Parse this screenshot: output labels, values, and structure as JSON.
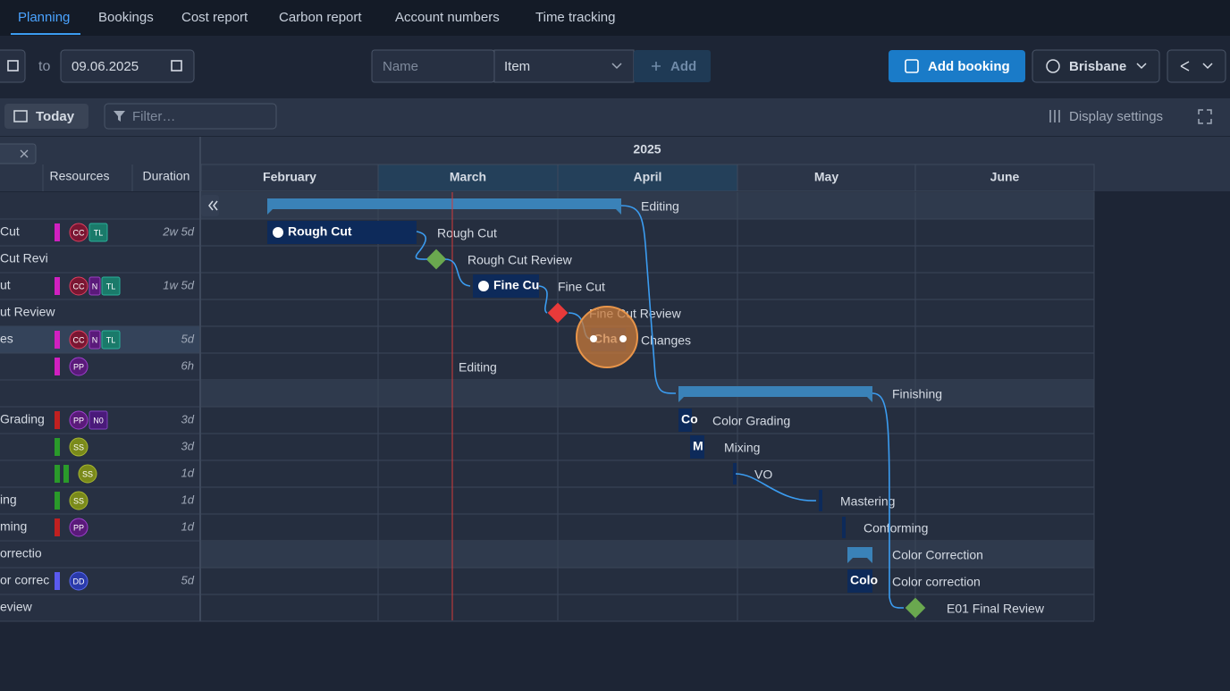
{
  "tabs": [
    "Planning",
    "Bookings",
    "Cost report",
    "Carbon report",
    "Account numbers",
    "Time tracking"
  ],
  "toolbar": {
    "to_label": "to",
    "end_date": "09.06.2025",
    "name_placeholder": "Name",
    "item_select": "Item",
    "add_button": "Add",
    "add_booking": "Add booking",
    "location": "Brisbane"
  },
  "subtoolbar": {
    "today": "Today",
    "filter_placeholder": "Filter…",
    "display_settings": "Display settings"
  },
  "grid_header": {
    "resources": "Resources",
    "duration": "Duration"
  },
  "timeline": {
    "year": "2025",
    "months": [
      "February",
      "March",
      "April",
      "May",
      "June"
    ]
  },
  "rows": [
    {
      "label": "Editing"
    },
    {
      "name": "Cut",
      "resources": [
        "CC",
        "TL"
      ],
      "duration": "2w 5d",
      "bar_text": "Rough Cut",
      "label": "Rough Cut"
    },
    {
      "name": "Cut Revi",
      "label": "Rough Cut Review"
    },
    {
      "name": "ut",
      "resources": [
        "CC",
        "N",
        "TL"
      ],
      "duration": "1w 5d",
      "bar_text": "Fine Cu",
      "label": "Fine Cut"
    },
    {
      "name": "ut Review",
      "label": "Fine Cut Review"
    },
    {
      "name": "es",
      "resources": [
        "CC",
        "N",
        "TL"
      ],
      "duration": "5d",
      "bar_text": "Cha",
      "label": "Changes"
    },
    {
      "resources": [
        "PP"
      ],
      "duration": "6h",
      "label": "Editing"
    },
    {
      "label": "Finishing"
    },
    {
      "name": "Grading",
      "resources": [
        "PP",
        "N0"
      ],
      "duration": "3d",
      "bar_text": "Co",
      "label": "Color Grading"
    },
    {
      "resources": [
        "SS"
      ],
      "duration": "3d",
      "bar_text": "M",
      "label": "Mixing"
    },
    {
      "resources": [
        "SS"
      ],
      "duration": "1d",
      "label": "VO"
    },
    {
      "name": "ing",
      "resources": [
        "SS"
      ],
      "duration": "1d",
      "label": "Mastering"
    },
    {
      "name": "ming",
      "resources": [
        "PP"
      ],
      "duration": "1d",
      "label": "Conforming"
    },
    {
      "name": "orrectio",
      "label": "Color Correction"
    },
    {
      "name": "or correc",
      "resources": [
        "DD"
      ],
      "duration": "5d",
      "bar_text": "Colo",
      "label": "Color correction"
    },
    {
      "name": "eview",
      "label": "E01 Final Review"
    }
  ]
}
